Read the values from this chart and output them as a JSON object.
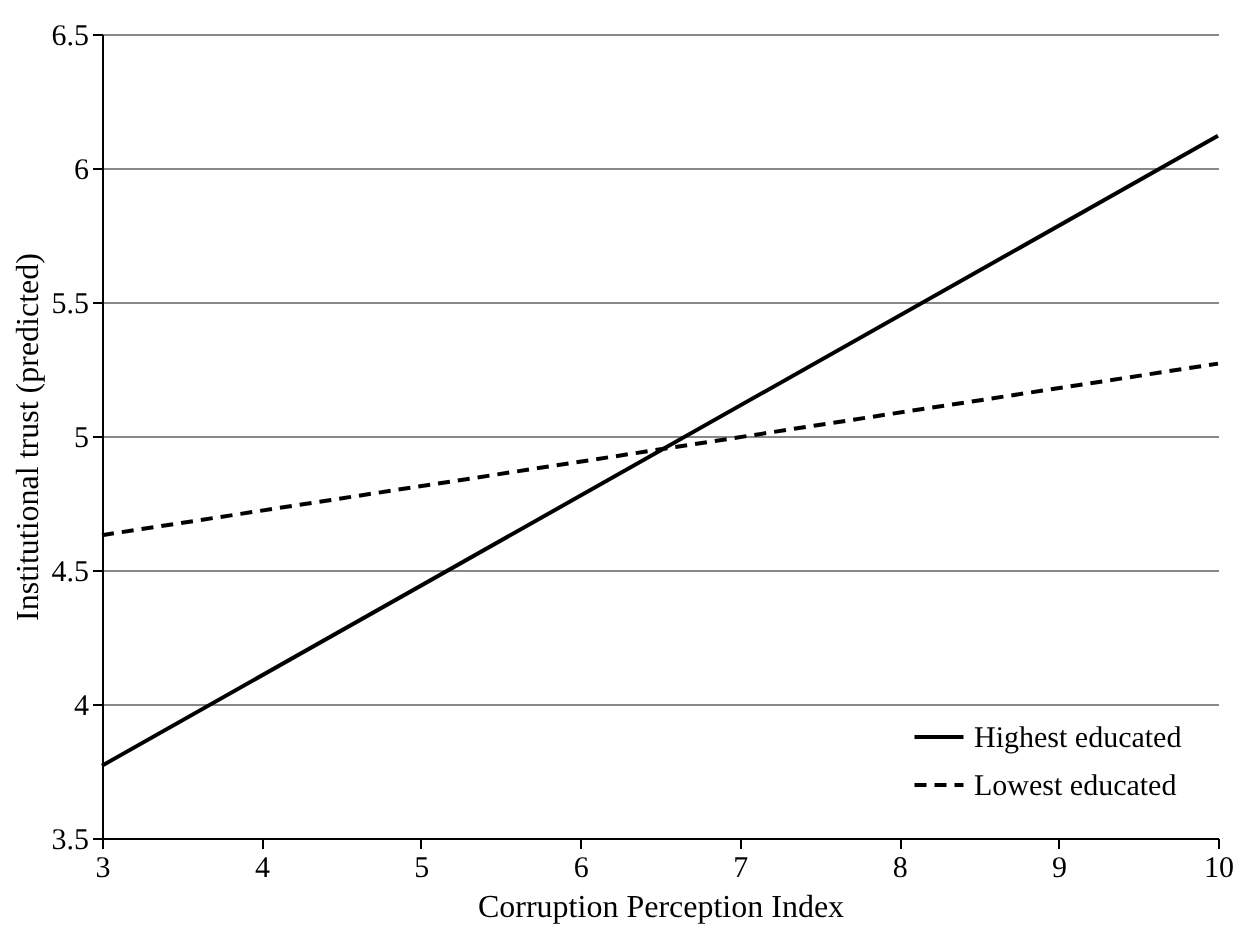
{
  "chart_data": {
    "type": "line",
    "xlabel": "Corruption Perception Index",
    "ylabel": "Institutional trust (predicted)",
    "x": [
      3,
      10
    ],
    "xlim": [
      3,
      10
    ],
    "xticks": [
      3,
      4,
      5,
      6,
      7,
      8,
      9,
      10
    ],
    "ylim": [
      3.5,
      6.5
    ],
    "yticks": [
      3.5,
      4,
      4.5,
      5,
      5.5,
      6,
      6.5
    ],
    "grid": "y",
    "legend": "bottom right",
    "marker": "none",
    "series": [
      {
        "name": "Highest educated",
        "color": "#000000",
        "values": [
          3.77,
          6.12
        ],
        "line_style": "solid"
      },
      {
        "name": "Lowest educated",
        "color": "#000000",
        "values": [
          4.63,
          5.27
        ],
        "line_style": "dashed"
      }
    ]
  }
}
